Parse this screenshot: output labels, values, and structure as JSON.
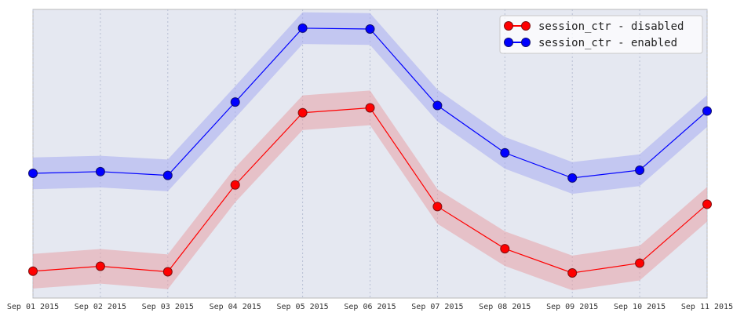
{
  "chart_data": {
    "type": "line",
    "title": "",
    "xlabel": "",
    "ylabel": "",
    "categories": [
      "Sep 01 2015",
      "Sep 02 2015",
      "Sep 03 2015",
      "Sep 04 2015",
      "Sep 05 2015",
      "Sep 06 2015",
      "Sep 07 2015",
      "Sep 08 2015",
      "Sep 09 2015",
      "Sep 10 2015",
      "Sep 11 2015"
    ],
    "ylim": [
      0,
      1
    ],
    "grid": {
      "vertical": true,
      "horizontal": false
    },
    "legend_position": "top-right",
    "series": [
      {
        "name": "session_ctr - disabled",
        "color": "#ff0000",
        "band_color": "#e8a0a6",
        "values": [
          0.093,
          0.11,
          0.091,
          0.392,
          0.642,
          0.659,
          0.317,
          0.171,
          0.087,
          0.121,
          0.325
        ],
        "lower": [
          0.033,
          0.05,
          0.031,
          0.332,
          0.582,
          0.599,
          0.257,
          0.111,
          0.027,
          0.061,
          0.265
        ],
        "upper": [
          0.153,
          0.17,
          0.151,
          0.452,
          0.702,
          0.719,
          0.377,
          0.231,
          0.147,
          0.181,
          0.385
        ]
      },
      {
        "name": "session_ctr - enabled",
        "color": "#0000ff",
        "band_color": "#a7acf0",
        "values": [
          0.432,
          0.438,
          0.425,
          0.679,
          0.935,
          0.932,
          0.667,
          0.503,
          0.416,
          0.443,
          0.648
        ],
        "lower": [
          0.377,
          0.383,
          0.37,
          0.624,
          0.88,
          0.877,
          0.612,
          0.448,
          0.361,
          0.388,
          0.593
        ],
        "upper": [
          0.487,
          0.493,
          0.48,
          0.734,
          0.99,
          0.987,
          0.722,
          0.558,
          0.471,
          0.498,
          0.703
        ]
      }
    ]
  }
}
